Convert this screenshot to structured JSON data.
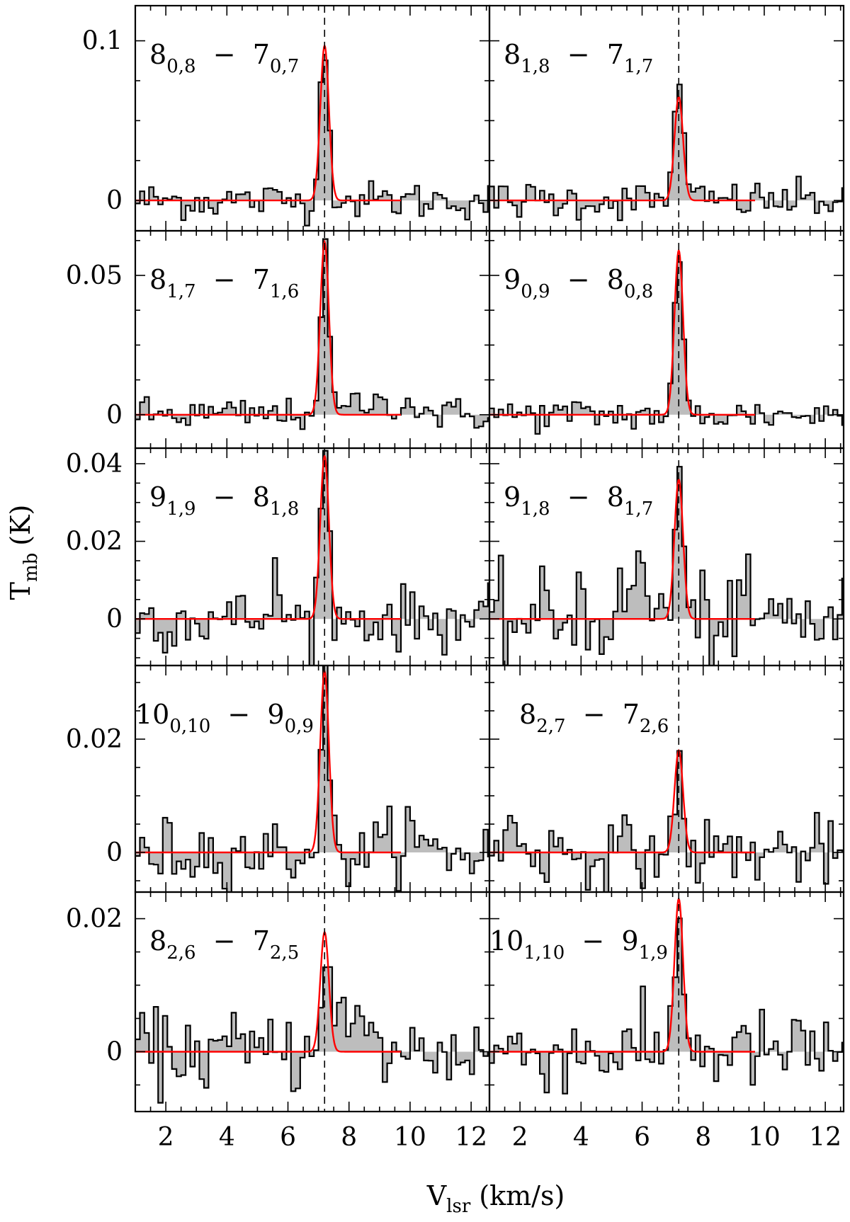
{
  "figure": {
    "ylabel": {
      "base": "T",
      "sub": "mb",
      "unit": "(K)"
    },
    "xlabel": {
      "base": "V",
      "sub": "lsr",
      "unit": "(km/s)"
    }
  },
  "chart_data": {
    "type": "line",
    "xlim": [
      1.0,
      12.6
    ],
    "x_ticks": [
      2,
      4,
      6,
      8,
      10,
      12
    ],
    "systemic_velocity": 7.2,
    "line_width_kms": 0.33,
    "grid": false,
    "panels": [
      {
        "row": 0,
        "col": 0,
        "transition": {
          "j": "8",
          "j_sub": "0,8",
          "k": "7",
          "k_sub": "0,7"
        },
        "ylim": [
          -0.019,
          0.122
        ],
        "yticks": [
          0,
          0.1
        ],
        "ytick_labels": [
          "0",
          "0.1"
        ],
        "peak_obs": 0.1,
        "peak_fit": 0.097,
        "noise": 0.006,
        "bumps": []
      },
      {
        "row": 0,
        "col": 1,
        "transition": {
          "j": "8",
          "j_sub": "1,8",
          "k": "7",
          "k_sub": "1,7"
        },
        "ylim": [
          -0.019,
          0.122
        ],
        "yticks": [
          0,
          0.1
        ],
        "ytick_labels": [
          "0",
          "0.1"
        ],
        "peak_obs": 0.083,
        "peak_fit": 0.065,
        "noise": 0.006,
        "bumps": []
      },
      {
        "row": 1,
        "col": 0,
        "transition": {
          "j": "8",
          "j_sub": "1,7",
          "k": "7",
          "k_sub": "1,6"
        },
        "ylim": [
          -0.012,
          0.066
        ],
        "yticks": [
          0,
          0.05
        ],
        "ytick_labels": [
          "0",
          "0.05"
        ],
        "peak_obs": 0.057,
        "peak_fit": 0.062,
        "noise": 0.003,
        "bumps": [
          [
            8.5,
            0.004,
            0.6
          ],
          [
            9.8,
            0.004,
            0.5
          ]
        ]
      },
      {
        "row": 1,
        "col": 1,
        "transition": {
          "j": "9",
          "j_sub": "0,9",
          "k": "8",
          "k_sub": "0,8"
        },
        "ylim": [
          -0.012,
          0.066
        ],
        "yticks": [
          0,
          0.05
        ],
        "ytick_labels": [
          "0",
          "0.05"
        ],
        "peak_obs": 0.054,
        "peak_fit": 0.059,
        "noise": 0.003,
        "bumps": []
      },
      {
        "row": 2,
        "col": 0,
        "transition": {
          "j": "9",
          "j_sub": "1,9",
          "k": "8",
          "k_sub": "1,8"
        },
        "ylim": [
          -0.012,
          0.044
        ],
        "yticks": [
          0,
          0.02,
          0.04
        ],
        "ytick_labels": [
          "0",
          "0.02",
          "0.04"
        ],
        "peak_obs": 0.0415,
        "peak_fit": 0.042,
        "noise": 0.004,
        "bumps": [
          [
            5.6,
            0.009,
            0.15
          ]
        ]
      },
      {
        "row": 2,
        "col": 1,
        "transition": {
          "j": "9",
          "j_sub": "1,8",
          "k": "8",
          "k_sub": "1,7"
        },
        "ylim": [
          -0.012,
          0.044
        ],
        "yticks": [
          0,
          0.02,
          0.04
        ],
        "ytick_labels": [
          "0",
          "0.02",
          "0.04"
        ],
        "peak_obs": 0.035,
        "peak_fit": 0.036,
        "noise": 0.006,
        "bumps": [
          [
            5.9,
            0.011,
            0.35
          ],
          [
            3.9,
            0.005,
            0.2
          ]
        ]
      },
      {
        "row": 3,
        "col": 0,
        "transition": {
          "j": "10",
          "j_sub": "0,10",
          "k": "9",
          "k_sub": "0,9"
        },
        "ylim": [
          -0.007,
          0.033
        ],
        "yticks": [
          0,
          0.02
        ],
        "ytick_labels": [
          "0",
          "0.02"
        ],
        "peak_obs": 0.029,
        "peak_fit": 0.032,
        "noise": 0.003,
        "bumps": [
          [
            9.8,
            0.004,
            0.3
          ]
        ]
      },
      {
        "row": 3,
        "col": 1,
        "transition": {
          "j": "8",
          "j_sub": "2,7",
          "k": "7",
          "k_sub": "2,6"
        },
        "ylim": [
          -0.007,
          0.033
        ],
        "yticks": [
          0,
          0.02
        ],
        "ytick_labels": [
          "0",
          "0.02"
        ],
        "peak_obs": 0.014,
        "peak_fit": 0.018,
        "noise": 0.003,
        "bumps": [
          [
            1.8,
            0.004,
            0.3
          ]
        ]
      },
      {
        "row": 4,
        "col": 0,
        "transition": {
          "j": "8",
          "j_sub": "2,6",
          "k": "7",
          "k_sub": "2,5"
        },
        "ylim": [
          -0.009,
          0.024
        ],
        "yticks": [
          0,
          0.02
        ],
        "ytick_labels": [
          "0",
          "0.02"
        ],
        "peak_obs": 0.0145,
        "peak_fit": 0.018,
        "noise": 0.003,
        "bumps": [
          [
            7.9,
            0.005,
            0.5
          ]
        ]
      },
      {
        "row": 4,
        "col": 1,
        "transition": {
          "j": "10",
          "j_sub": "1,10",
          "k": "9",
          "k_sub": "1,9"
        },
        "ylim": [
          -0.009,
          0.024
        ],
        "yticks": [
          0,
          0.02
        ],
        "ytick_labels": [
          "0",
          "0.02"
        ],
        "peak_obs": 0.022,
        "peak_fit": 0.023,
        "noise": 0.003,
        "bumps": []
      }
    ]
  }
}
